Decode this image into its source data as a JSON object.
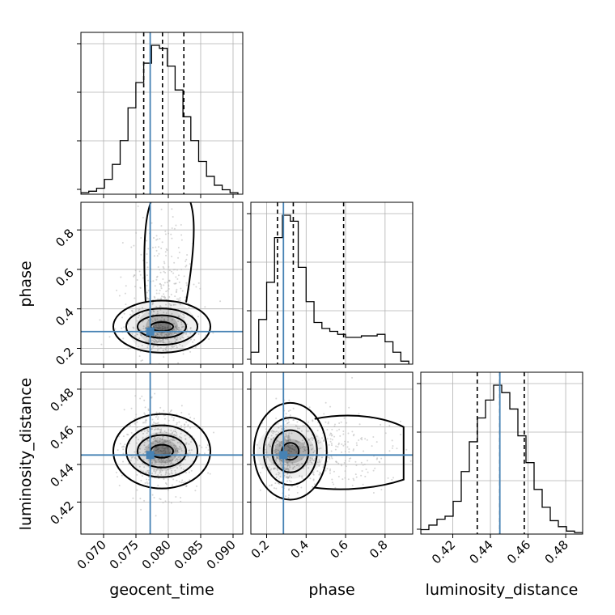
{
  "chart_data": {
    "type": "corner",
    "parameters": [
      "geocent_time",
      "phase",
      "luminosity_distance"
    ],
    "axis_labels": {
      "x": [
        "geocent_time",
        "phase",
        "luminosity_distance"
      ],
      "y": [
        "phase",
        "luminosity_distance"
      ]
    },
    "ranges": [
      [
        0.0665,
        0.0915
      ],
      [
        0.12,
        0.94
      ],
      [
        0.403,
        0.489
      ]
    ],
    "ticks": [
      {
        "values": [
          0.07,
          0.075,
          0.08,
          0.085,
          0.09
        ],
        "labels": [
          "0.070",
          "0.075",
          "0.080",
          "0.085",
          "0.090"
        ]
      },
      {
        "values": [
          0.2,
          0.4,
          0.6,
          0.8
        ],
        "labels": [
          "0.2",
          "0.4",
          "0.6",
          "0.8"
        ]
      },
      {
        "values": [
          0.42,
          0.44,
          0.46,
          0.48
        ],
        "labels": [
          "0.42",
          "0.44",
          "0.46",
          "0.48"
        ]
      }
    ],
    "truths": [
      0.0772,
      0.285,
      0.445
    ],
    "quantiles": [
      [
        0.0762,
        0.0791,
        0.0824
      ],
      [
        0.255,
        0.335,
        0.59
      ],
      [
        0.433,
        0.445,
        0.458
      ]
    ],
    "histograms": [
      {
        "bins": [
          0.0665,
          0.09075
        ],
        "counts": [
          1,
          2,
          4,
          10,
          20,
          36,
          58,
          75,
          88,
          100,
          98,
          86,
          70,
          52,
          36,
          22,
          12,
          6,
          3,
          1
        ]
      },
      {
        "bins": [
          0.12,
          0.92
        ],
        "counts": [
          8,
          30,
          55,
          85,
          100,
          96,
          65,
          42,
          28,
          24,
          22,
          20,
          18,
          18,
          19,
          19,
          20,
          15,
          8,
          2
        ]
      },
      {
        "bins": [
          0.403,
          0.489
        ],
        "counts": [
          3,
          6,
          10,
          12,
          22,
          42,
          62,
          78,
          90,
          100,
          95,
          84,
          66,
          48,
          30,
          18,
          9,
          5,
          2,
          1
        ]
      }
    ],
    "density_peaks": {
      "geocent_time_vs_phase": {
        "x": 0.079,
        "y": 0.31
      },
      "geocent_time_vs_luminosity_distance": {
        "x": 0.079,
        "y": 0.447
      },
      "phase_vs_luminosity_distance": {
        "x": 0.32,
        "y": 0.447
      }
    },
    "colors": {
      "truth": "#4682b4",
      "contour": "#000000",
      "points": "#b5b5b5",
      "grid": "#b0b0b0"
    },
    "grid": true
  }
}
